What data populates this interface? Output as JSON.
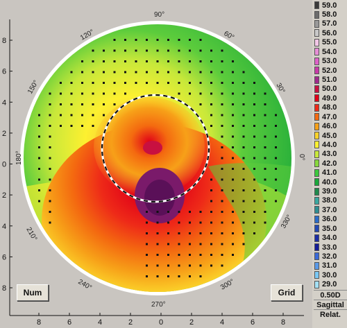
{
  "legend": {
    "entries": [
      {
        "label": "59.0",
        "color": "#3a3a3a"
      },
      {
        "label": "58.0",
        "color": "#6c6c6c"
      },
      {
        "label": "57.0",
        "color": "#9a9a9a"
      },
      {
        "label": "56.0",
        "color": "#c8c8c8"
      },
      {
        "label": "55.0",
        "color": "#f2c6e6"
      },
      {
        "label": "54.0",
        "color": "#e78ed6"
      },
      {
        "label": "53.0",
        "color": "#de62c8"
      },
      {
        "label": "52.0",
        "color": "#c83aa8"
      },
      {
        "label": "51.0",
        "color": "#a02a8c"
      },
      {
        "label": "50.0",
        "color": "#c81040"
      },
      {
        "label": "49.0",
        "color": "#e00018"
      },
      {
        "label": "48.0",
        "color": "#ee2a18"
      },
      {
        "label": "47.0",
        "color": "#f46a10"
      },
      {
        "label": "46.0",
        "color": "#f7a018"
      },
      {
        "label": "45.0",
        "color": "#fbd22a"
      },
      {
        "label": "44.0",
        "color": "#fdf030"
      },
      {
        "label": "43.0",
        "color": "#c8e83a"
      },
      {
        "label": "42.0",
        "color": "#88d83c"
      },
      {
        "label": "41.0",
        "color": "#3cc83c"
      },
      {
        "label": "40.0",
        "color": "#1aa83a"
      },
      {
        "label": "39.0",
        "color": "#208a4c"
      },
      {
        "label": "38.0",
        "color": "#3aa8a0"
      },
      {
        "label": "37.0",
        "color": "#2e8e92"
      },
      {
        "label": "36.0",
        "color": "#2a6cc8"
      },
      {
        "label": "35.0",
        "color": "#2248b4"
      },
      {
        "label": "34.0",
        "color": "#1c2ea6"
      },
      {
        "label": "33.0",
        "color": "#141c98"
      },
      {
        "label": "32.0",
        "color": "#3a6ad8"
      },
      {
        "label": "31.0",
        "color": "#5a9ae8"
      },
      {
        "label": "30.0",
        "color": "#7ac8f4"
      },
      {
        "label": "29.0",
        "color": "#a4e0f4"
      }
    ],
    "step": "0.50D",
    "map_type": "Sagittal",
    "mode": "Relat."
  },
  "buttons": {
    "num": "Num",
    "grid": "Grid"
  },
  "axis": {
    "y_ticks": [
      "8",
      "6",
      "4",
      "2",
      "0",
      "2",
      "4",
      "6",
      "8"
    ],
    "x_ticks": [
      "8",
      "6",
      "4",
      "2",
      "0",
      "2",
      "4",
      "6",
      "8"
    ]
  },
  "angles": {
    "a90": "90°",
    "a60": "60°",
    "a30": "30°",
    "a0": "0°",
    "a330": "330°",
    "a300": "300°",
    "a270": "270°",
    "a240": "240°",
    "a210": "210°",
    "a180": "180°",
    "a150": "150°",
    "a120": "120°"
  },
  "colors": {
    "panel": "#c9c5c0",
    "outer_green": "#1aa83a",
    "pupil_ring": "#ffffff"
  }
}
